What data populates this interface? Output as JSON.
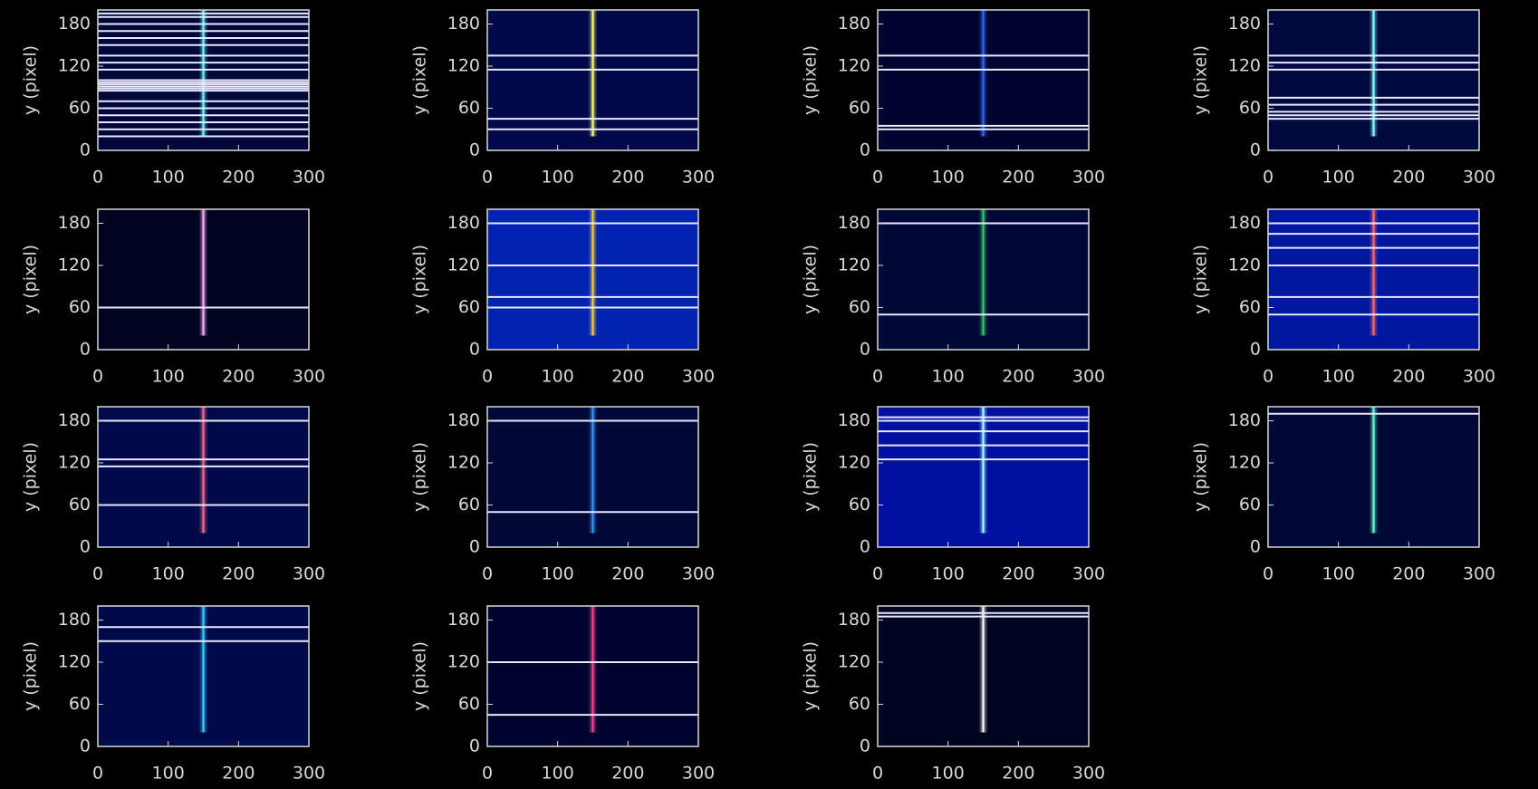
{
  "chart_data": [
    {
      "type": "image",
      "ylabel": "y (pixel)",
      "xlim": [
        0,
        300
      ],
      "ylim": [
        0,
        200
      ],
      "xticks": [
        0,
        100,
        200,
        300
      ],
      "yticks": [
        0,
        60,
        120,
        180
      ],
      "background": "#00083a",
      "trace_color": "#66ffff",
      "hlines": [
        20,
        30,
        40,
        50,
        60,
        70,
        85,
        88,
        91,
        94,
        97,
        100,
        115,
        125,
        135,
        150,
        160,
        170,
        180,
        190,
        195
      ]
    },
    {
      "type": "image",
      "ylabel": "y (pixel)",
      "xlim": [
        0,
        300
      ],
      "ylim": [
        0,
        200
      ],
      "xticks": [
        0,
        100,
        200,
        300
      ],
      "yticks": [
        0,
        60,
        120,
        180
      ],
      "background": "#000a48",
      "trace_color": "#ffff66",
      "hlines": [
        30,
        45,
        115,
        135
      ]
    },
    {
      "type": "image",
      "ylabel": "y (pixel)",
      "xlim": [
        0,
        300
      ],
      "ylim": [
        0,
        200
      ],
      "xticks": [
        0,
        100,
        200,
        300
      ],
      "yticks": [
        0,
        60,
        120,
        180
      ],
      "background": "#000530",
      "trace_color": "#3366ff",
      "hlines": [
        30,
        35,
        115,
        135
      ]
    },
    {
      "type": "image",
      "ylabel": "y (pixel)",
      "xlim": [
        0,
        300
      ],
      "ylim": [
        0,
        200
      ],
      "xticks": [
        0,
        100,
        200,
        300
      ],
      "yticks": [
        0,
        60,
        120,
        180
      ],
      "background": "#000840",
      "trace_color": "#88ffff",
      "hlines": [
        45,
        50,
        55,
        65,
        75,
        115,
        125,
        135
      ]
    },
    {
      "type": "image",
      "ylabel": "y (pixel)",
      "xlim": [
        0,
        300
      ],
      "ylim": [
        0,
        200
      ],
      "xticks": [
        0,
        100,
        200,
        300
      ],
      "yticks": [
        0,
        60,
        120,
        180
      ],
      "background": "#000420",
      "trace_color": "#ffaaff",
      "hlines": [
        60
      ]
    },
    {
      "type": "image",
      "ylabel": "y (pixel)",
      "xlim": [
        0,
        300
      ],
      "ylim": [
        0,
        200
      ],
      "xticks": [
        0,
        100,
        200,
        300
      ],
      "yticks": [
        0,
        60,
        120,
        180
      ],
      "background": "#0024b0",
      "trace_color": "#ffcc33",
      "hlines": [
        60,
        75,
        120,
        180
      ]
    },
    {
      "type": "image",
      "ylabel": "y (pixel)",
      "xlim": [
        0,
        300
      ],
      "ylim": [
        0,
        200
      ],
      "xticks": [
        0,
        100,
        200,
        300
      ],
      "yticks": [
        0,
        60,
        120,
        180
      ],
      "background": "#000838",
      "trace_color": "#33cc66",
      "hlines": [
        50,
        180
      ]
    },
    {
      "type": "image",
      "ylabel": "y (pixel)",
      "xlim": [
        0,
        300
      ],
      "ylim": [
        0,
        200
      ],
      "xticks": [
        0,
        100,
        200,
        300
      ],
      "yticks": [
        0,
        60,
        120,
        180
      ],
      "background": "#0018a0",
      "trace_color": "#ff6666",
      "hlines": [
        50,
        75,
        120,
        145,
        165,
        180
      ]
    },
    {
      "type": "image",
      "ylabel": "y (pixel)",
      "xlim": [
        0,
        300
      ],
      "ylim": [
        0,
        200
      ],
      "xticks": [
        0,
        100,
        200,
        300
      ],
      "yticks": [
        0,
        60,
        120,
        180
      ],
      "background": "#000a48",
      "trace_color": "#ff6688",
      "hlines": [
        60,
        115,
        125,
        180
      ]
    },
    {
      "type": "image",
      "ylabel": "y (pixel)",
      "xlim": [
        0,
        300
      ],
      "ylim": [
        0,
        200
      ],
      "xticks": [
        0,
        100,
        200,
        300
      ],
      "yticks": [
        0,
        60,
        120,
        180
      ],
      "background": "#000838",
      "trace_color": "#3399ff",
      "hlines": [
        50,
        180
      ]
    },
    {
      "type": "image",
      "ylabel": "y (pixel)",
      "xlim": [
        0,
        300
      ],
      "ylim": [
        0,
        200
      ],
      "xticks": [
        0,
        100,
        200,
        300
      ],
      "yticks": [
        0,
        60,
        120,
        180
      ],
      "background": "#0010a0",
      "trace_color": "#aaffff",
      "hlines": [
        125,
        145,
        165,
        180,
        185
      ]
    },
    {
      "type": "image",
      "ylabel": "y (pixel)",
      "xlim": [
        0,
        300
      ],
      "ylim": [
        0,
        200
      ],
      "xticks": [
        0,
        100,
        200,
        300
      ],
      "yticks": [
        0,
        60,
        120,
        180
      ],
      "background": "#000838",
      "trace_color": "#66ffcc",
      "hlines": [
        190
      ]
    },
    {
      "type": "image",
      "ylabel": "y (pixel)",
      "xlim": [
        0,
        300
      ],
      "ylim": [
        0,
        200
      ],
      "xticks": [
        0,
        100,
        200,
        300
      ],
      "yticks": [
        0,
        60,
        120,
        180
      ],
      "background": "#000a48",
      "trace_color": "#33ccff",
      "hlines": [
        150,
        170
      ]
    },
    {
      "type": "image",
      "ylabel": "y (pixel)",
      "xlim": [
        0,
        300
      ],
      "ylim": [
        0,
        200
      ],
      "xticks": [
        0,
        100,
        200,
        300
      ],
      "yticks": [
        0,
        60,
        120,
        180
      ],
      "background": "#000530",
      "trace_color": "#ff4488",
      "hlines": [
        45,
        120
      ]
    },
    {
      "type": "image",
      "ylabel": "y (pixel)",
      "xlim": [
        0,
        300
      ],
      "ylim": [
        0,
        200
      ],
      "xticks": [
        0,
        100,
        200,
        300
      ],
      "yticks": [
        0,
        60,
        120,
        180
      ],
      "background": "#000420",
      "trace_color": "#ffffff",
      "hlines": [
        185,
        190
      ]
    }
  ]
}
